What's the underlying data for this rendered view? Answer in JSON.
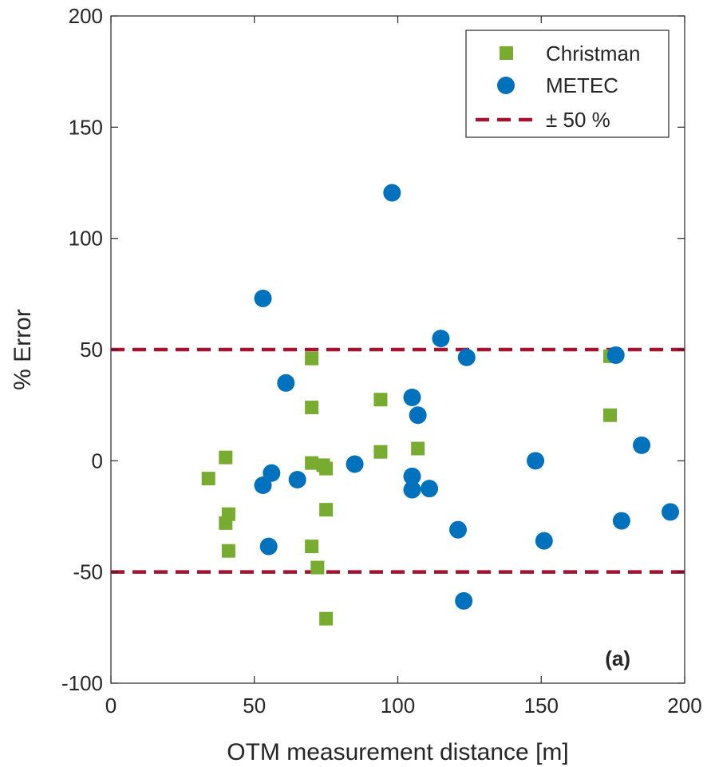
{
  "chart_data": {
    "type": "scatter",
    "title": "",
    "xlabel": "OTM measurement distance [m]",
    "ylabel": "% Error",
    "xlim": [
      0,
      200
    ],
    "ylim": [
      -100,
      200
    ],
    "xticks": [
      "0",
      "50",
      "100",
      "150",
      "200"
    ],
    "yticks": [
      "-100",
      "-50",
      "0",
      "50",
      "100",
      "150",
      "200"
    ],
    "panel_label": "(a)",
    "grid": false,
    "legend_position": "top-right",
    "colors": {
      "christman": "#77ac30",
      "metec": "#0072bd",
      "limit": "#a2142f",
      "axis": "#262626"
    },
    "series": [
      {
        "name": "Christman",
        "marker": "square",
        "points": [
          [
            34,
            -8
          ],
          [
            40,
            1.5
          ],
          [
            40,
            -28
          ],
          [
            41,
            -24
          ],
          [
            41,
            -40.5
          ],
          [
            70,
            46
          ],
          [
            70,
            24
          ],
          [
            70,
            -1
          ],
          [
            70,
            -38.5
          ],
          [
            72,
            -48
          ],
          [
            74,
            -2
          ],
          [
            75,
            -3.5
          ],
          [
            75,
            -22
          ],
          [
            75,
            -71
          ],
          [
            94,
            27.5
          ],
          [
            94,
            4
          ],
          [
            107,
            5.5
          ],
          [
            174,
            47
          ],
          [
            174,
            20.5
          ]
        ]
      },
      {
        "name": "METEC",
        "marker": "circle",
        "points": [
          [
            53,
            73
          ],
          [
            53,
            -11
          ],
          [
            55,
            -38.5
          ],
          [
            56,
            -5.5
          ],
          [
            61,
            35
          ],
          [
            65,
            -8.5
          ],
          [
            85,
            -1.5
          ],
          [
            98,
            120.5
          ],
          [
            105,
            28.5
          ],
          [
            105,
            -7
          ],
          [
            105,
            -13
          ],
          [
            107,
            20.5
          ],
          [
            111,
            -12.5
          ],
          [
            115,
            55
          ],
          [
            121,
            -31
          ],
          [
            123,
            -63
          ],
          [
            124,
            46.5
          ],
          [
            148,
            0
          ],
          [
            151,
            -36
          ],
          [
            176,
            47.5
          ],
          [
            178,
            -27
          ],
          [
            185,
            7
          ],
          [
            195,
            -23
          ]
        ]
      }
    ],
    "reference_lines": {
      "name": "± 50 %",
      "values": [
        50,
        -50
      ],
      "style": "dashed"
    }
  }
}
